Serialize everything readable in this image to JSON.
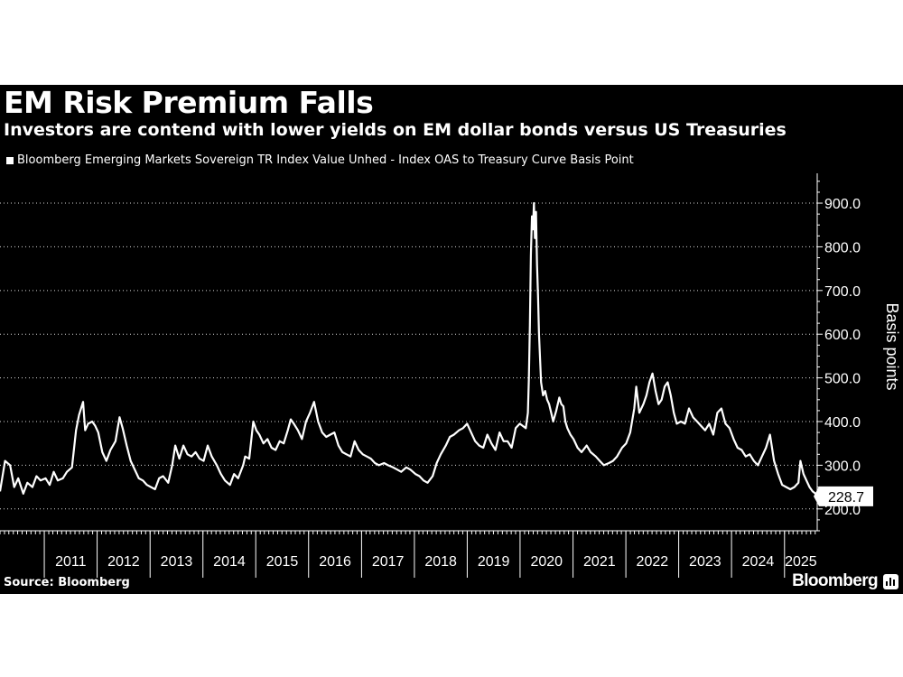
{
  "header": {
    "title": "EM Risk Premium Falls",
    "subtitle": "Investors are contend with lower yields on EM dollar bonds versus US Treasuries"
  },
  "footer": {
    "source": "Source: Bloomberg",
    "brand": "Bloomberg"
  },
  "colors": {
    "background": "#000000",
    "line": "#ffffff",
    "grid": "#ffffff",
    "axis": "#ffffff"
  },
  "chart_data": {
    "type": "line",
    "title": "EM Risk Premium Falls",
    "subtitle": "Investors are contend with lower yields on EM dollar bonds versus US Treasuries",
    "ylabel": "Basis points",
    "xlabel": "",
    "ylim": [
      150,
      960
    ],
    "xlim": [
      "2010-03-01",
      "2025-08-15"
    ],
    "y_ticks": [
      200,
      300,
      400,
      500,
      600,
      700,
      800,
      900
    ],
    "y_tick_labels": [
      "200.0",
      "300.0",
      "400.0",
      "500.0",
      "600.0",
      "700.0",
      "800.0",
      "900.0"
    ],
    "x_tick_labels": [
      "2011",
      "2012",
      "2013",
      "2014",
      "2015",
      "2016",
      "2017",
      "2018",
      "2019",
      "2020",
      "2021",
      "2022",
      "2023",
      "2024",
      "2025"
    ],
    "grid": "horizontal dotted",
    "y_axis_position": "right",
    "legend_position": "top-left",
    "last_value_label": "228.7",
    "series": [
      {
        "name": "Bloomberg Emerging Markets Sovereign TR Index Value Unhed - Index OAS to Treasury Curve Basis Point",
        "points": [
          [
            "2010-03-01",
            240
          ],
          [
            "2010-04-05",
            310
          ],
          [
            "2010-05-10",
            300
          ],
          [
            "2010-06-07",
            250
          ],
          [
            "2010-07-05",
            270
          ],
          [
            "2010-08-09",
            235
          ],
          [
            "2010-09-06",
            260
          ],
          [
            "2010-10-11",
            250
          ],
          [
            "2010-11-08",
            275
          ],
          [
            "2010-12-06",
            265
          ],
          [
            "2011-01-10",
            270
          ],
          [
            "2011-02-07",
            255
          ],
          [
            "2011-03-07",
            285
          ],
          [
            "2011-04-04",
            265
          ],
          [
            "2011-05-09",
            270
          ],
          [
            "2011-06-06",
            285
          ],
          [
            "2011-07-11",
            295
          ],
          [
            "2011-08-08",
            380
          ],
          [
            "2011-08-29",
            415
          ],
          [
            "2011-09-26",
            445
          ],
          [
            "2011-10-10",
            380
          ],
          [
            "2011-10-31",
            395
          ],
          [
            "2011-11-28",
            400
          ],
          [
            "2011-12-19",
            390
          ],
          [
            "2012-01-09",
            375
          ],
          [
            "2012-02-06",
            330
          ],
          [
            "2012-03-05",
            310
          ],
          [
            "2012-04-02",
            335
          ],
          [
            "2012-05-07",
            355
          ],
          [
            "2012-06-04",
            410
          ],
          [
            "2012-06-25",
            385
          ],
          [
            "2012-07-23",
            345
          ],
          [
            "2012-08-20",
            310
          ],
          [
            "2012-09-17",
            290
          ],
          [
            "2012-10-15",
            270
          ],
          [
            "2012-11-12",
            265
          ],
          [
            "2012-12-10",
            255
          ],
          [
            "2013-01-07",
            250
          ],
          [
            "2013-02-04",
            245
          ],
          [
            "2013-03-04",
            270
          ],
          [
            "2013-04-01",
            275
          ],
          [
            "2013-05-06",
            260
          ],
          [
            "2013-06-03",
            300
          ],
          [
            "2013-06-24",
            345
          ],
          [
            "2013-07-22",
            315
          ],
          [
            "2013-08-19",
            345
          ],
          [
            "2013-09-16",
            325
          ],
          [
            "2013-10-14",
            320
          ],
          [
            "2013-11-11",
            330
          ],
          [
            "2013-12-09",
            315
          ],
          [
            "2014-01-06",
            310
          ],
          [
            "2014-02-03",
            345
          ],
          [
            "2014-03-03",
            320
          ],
          [
            "2014-04-07",
            300
          ],
          [
            "2014-05-05",
            280
          ],
          [
            "2014-06-02",
            265
          ],
          [
            "2014-07-07",
            255
          ],
          [
            "2014-08-04",
            280
          ],
          [
            "2014-09-01",
            270
          ],
          [
            "2014-10-06",
            300
          ],
          [
            "2014-10-20",
            320
          ],
          [
            "2014-11-17",
            315
          ],
          [
            "2014-12-15",
            400
          ],
          [
            "2015-01-05",
            380
          ],
          [
            "2015-01-26",
            370
          ],
          [
            "2015-02-23",
            350
          ],
          [
            "2015-03-23",
            360
          ],
          [
            "2015-04-20",
            340
          ],
          [
            "2015-05-18",
            335
          ],
          [
            "2015-06-15",
            355
          ],
          [
            "2015-07-13",
            350
          ],
          [
            "2015-08-10",
            380
          ],
          [
            "2015-08-31",
            405
          ],
          [
            "2015-09-21",
            395
          ],
          [
            "2015-10-19",
            380
          ],
          [
            "2015-11-16",
            360
          ],
          [
            "2015-12-14",
            400
          ],
          [
            "2016-01-11",
            420
          ],
          [
            "2016-02-08",
            445
          ],
          [
            "2016-03-07",
            400
          ],
          [
            "2016-04-04",
            375
          ],
          [
            "2016-05-02",
            365
          ],
          [
            "2016-05-30",
            370
          ],
          [
            "2016-06-27",
            375
          ],
          [
            "2016-07-25",
            345
          ],
          [
            "2016-08-22",
            330
          ],
          [
            "2016-09-19",
            325
          ],
          [
            "2016-10-17",
            320
          ],
          [
            "2016-11-14",
            355
          ],
          [
            "2016-12-12",
            335
          ],
          [
            "2017-01-09",
            325
          ],
          [
            "2017-02-06",
            320
          ],
          [
            "2017-03-06",
            315
          ],
          [
            "2017-04-03",
            305
          ],
          [
            "2017-05-01",
            300
          ],
          [
            "2017-06-05",
            305
          ],
          [
            "2017-07-03",
            300
          ],
          [
            "2017-08-07",
            295
          ],
          [
            "2017-09-04",
            290
          ],
          [
            "2017-10-02",
            285
          ],
          [
            "2017-11-06",
            295
          ],
          [
            "2017-12-04",
            290
          ],
          [
            "2018-01-08",
            280
          ],
          [
            "2018-02-05",
            275
          ],
          [
            "2018-03-05",
            265
          ],
          [
            "2018-04-02",
            260
          ],
          [
            "2018-05-07",
            275
          ],
          [
            "2018-06-04",
            305
          ],
          [
            "2018-07-02",
            325
          ],
          [
            "2018-08-06",
            345
          ],
          [
            "2018-09-03",
            365
          ],
          [
            "2018-10-01",
            370
          ],
          [
            "2018-11-05",
            380
          ],
          [
            "2018-12-03",
            385
          ],
          [
            "2018-12-31",
            395
          ],
          [
            "2019-01-28",
            375
          ],
          [
            "2019-02-25",
            355
          ],
          [
            "2019-03-25",
            345
          ],
          [
            "2019-04-22",
            340
          ],
          [
            "2019-05-20",
            370
          ],
          [
            "2019-06-17",
            350
          ],
          [
            "2019-07-15",
            335
          ],
          [
            "2019-08-12",
            375
          ],
          [
            "2019-09-09",
            355
          ],
          [
            "2019-10-07",
            355
          ],
          [
            "2019-11-04",
            340
          ],
          [
            "2019-12-02",
            385
          ],
          [
            "2019-12-30",
            395
          ],
          [
            "2020-01-20",
            390
          ],
          [
            "2020-02-10",
            385
          ],
          [
            "2020-02-24",
            420
          ],
          [
            "2020-03-02",
            500
          ],
          [
            "2020-03-09",
            620
          ],
          [
            "2020-03-16",
            780
          ],
          [
            "2020-03-23",
            870
          ],
          [
            "2020-03-30",
            840
          ],
          [
            "2020-04-06",
            900
          ],
          [
            "2020-04-13",
            820
          ],
          [
            "2020-04-20",
            880
          ],
          [
            "2020-04-27",
            760
          ],
          [
            "2020-05-04",
            690
          ],
          [
            "2020-05-11",
            600
          ],
          [
            "2020-05-25",
            490
          ],
          [
            "2020-06-08",
            460
          ],
          [
            "2020-06-22",
            470
          ],
          [
            "2020-07-06",
            450
          ],
          [
            "2020-07-20",
            440
          ],
          [
            "2020-08-03",
            420
          ],
          [
            "2020-08-17",
            400
          ],
          [
            "2020-09-07",
            425
          ],
          [
            "2020-09-28",
            455
          ],
          [
            "2020-10-12",
            440
          ],
          [
            "2020-10-26",
            435
          ],
          [
            "2020-11-09",
            400
          ],
          [
            "2020-11-23",
            385
          ],
          [
            "2020-12-14",
            370
          ],
          [
            "2021-01-04",
            360
          ],
          [
            "2021-02-01",
            340
          ],
          [
            "2021-03-01",
            330
          ],
          [
            "2021-04-05",
            345
          ],
          [
            "2021-05-03",
            330
          ],
          [
            "2021-06-07",
            320
          ],
          [
            "2021-07-05",
            310
          ],
          [
            "2021-08-02",
            300
          ],
          [
            "2021-09-06",
            305
          ],
          [
            "2021-10-04",
            310
          ],
          [
            "2021-11-01",
            320
          ],
          [
            "2021-12-06",
            340
          ],
          [
            "2022-01-03",
            350
          ],
          [
            "2022-01-31",
            375
          ],
          [
            "2022-02-28",
            430
          ],
          [
            "2022-03-14",
            480
          ],
          [
            "2022-04-04",
            420
          ],
          [
            "2022-05-02",
            440
          ],
          [
            "2022-05-23",
            460
          ],
          [
            "2022-06-13",
            490
          ],
          [
            "2022-07-04",
            510
          ],
          [
            "2022-07-25",
            470
          ],
          [
            "2022-08-15",
            440
          ],
          [
            "2022-09-05",
            450
          ],
          [
            "2022-09-26",
            480
          ],
          [
            "2022-10-17",
            490
          ],
          [
            "2022-11-07",
            460
          ],
          [
            "2022-11-28",
            420
          ],
          [
            "2022-12-19",
            395
          ],
          [
            "2023-01-16",
            400
          ],
          [
            "2023-02-13",
            395
          ],
          [
            "2023-03-13",
            430
          ],
          [
            "2023-04-10",
            410
          ],
          [
            "2023-05-08",
            400
          ],
          [
            "2023-06-05",
            390
          ],
          [
            "2023-07-03",
            380
          ],
          [
            "2023-07-31",
            395
          ],
          [
            "2023-08-28",
            370
          ],
          [
            "2023-09-25",
            420
          ],
          [
            "2023-10-23",
            430
          ],
          [
            "2023-11-20",
            395
          ],
          [
            "2023-12-18",
            385
          ],
          [
            "2024-01-15",
            360
          ],
          [
            "2024-02-12",
            340
          ],
          [
            "2024-03-11",
            335
          ],
          [
            "2024-04-08",
            320
          ],
          [
            "2024-05-06",
            325
          ],
          [
            "2024-06-03",
            310
          ],
          [
            "2024-07-01",
            300
          ],
          [
            "2024-07-29",
            320
          ],
          [
            "2024-08-26",
            340
          ],
          [
            "2024-09-23",
            370
          ],
          [
            "2024-10-21",
            310
          ],
          [
            "2024-11-18",
            280
          ],
          [
            "2024-12-16",
            255
          ],
          [
            "2025-01-13",
            250
          ],
          [
            "2025-02-10",
            245
          ],
          [
            "2025-03-10",
            250
          ],
          [
            "2025-04-07",
            260
          ],
          [
            "2025-04-21",
            310
          ],
          [
            "2025-05-12",
            280
          ],
          [
            "2025-06-02",
            265
          ],
          [
            "2025-06-23",
            250
          ],
          [
            "2025-07-14",
            240
          ],
          [
            "2025-08-04",
            235
          ],
          [
            "2025-08-15",
            228.7
          ]
        ]
      }
    ]
  }
}
